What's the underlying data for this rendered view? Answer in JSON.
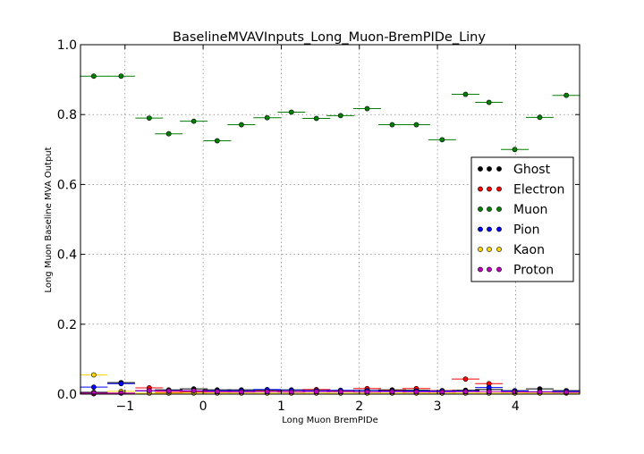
{
  "chart_data": {
    "type": "scatter",
    "title": "BaselineMVAVInputs_Long_Muon-BremPIDe_Liny",
    "xlabel": "Long Muon BremPIDe",
    "ylabel": "Long Muon Baseline MVA Output",
    "xlim": [
      -1.57,
      4.82
    ],
    "ylim": [
      0.0,
      1.0
    ],
    "x_ticks": [
      "−1",
      "0",
      "1",
      "2",
      "3",
      "4"
    ],
    "x_tick_values": [
      -1,
      0,
      1,
      2,
      3,
      4
    ],
    "y_ticks": [
      "0.0",
      "0.2",
      "0.4",
      "0.6",
      "0.8",
      "1.0"
    ],
    "y_tick_values": [
      0.0,
      0.2,
      0.4,
      0.6,
      0.8,
      1.0
    ],
    "grid": true,
    "legend_position": "center-right",
    "bin_width": 0.355,
    "x": [
      -1.4,
      -1.05,
      -0.69,
      -0.44,
      -0.12,
      0.18,
      0.49,
      0.82,
      1.13,
      1.45,
      1.76,
      2.1,
      2.42,
      2.73,
      3.06,
      3.36,
      3.66,
      3.99,
      4.31,
      4.65
    ],
    "series": [
      {
        "name": "Ghost",
        "color": "#000000",
        "values": [
          0.005,
          0.033,
          0.01,
          0.012,
          0.015,
          0.012,
          0.012,
          0.011,
          0.012,
          0.011,
          0.01,
          0.011,
          0.012,
          0.011,
          0.01,
          0.011,
          0.013,
          0.01,
          0.015,
          0.01
        ]
      },
      {
        "name": "Electron",
        "color": "#ff0000",
        "values": [
          0.001,
          0.003,
          0.018,
          0.005,
          0.006,
          0.006,
          0.007,
          0.008,
          0.01,
          0.013,
          0.008,
          0.016,
          0.01,
          0.016,
          0.01,
          0.043,
          0.03,
          0.006,
          0.006,
          0.005
        ]
      },
      {
        "name": "Muon",
        "color": "#008000",
        "values": [
          0.91,
          0.91,
          0.79,
          0.745,
          0.781,
          0.725,
          0.771,
          0.791,
          0.807,
          0.789,
          0.797,
          0.817,
          0.771,
          0.771,
          0.728,
          0.858,
          0.835,
          0.7,
          0.792,
          0.855
        ]
      },
      {
        "name": "Pion",
        "color": "#0000ff",
        "values": [
          0.02,
          0.03,
          0.009,
          0.01,
          0.009,
          0.01,
          0.01,
          0.013,
          0.011,
          0.01,
          0.011,
          0.01,
          0.009,
          0.009,
          0.009,
          0.009,
          0.019,
          0.009,
          0.007,
          0.008
        ]
      },
      {
        "name": "Kaon",
        "color": "#ffd700",
        "values": [
          0.055,
          0.008,
          0.003,
          0.003,
          0.003,
          0.003,
          0.003,
          0.003,
          0.003,
          0.003,
          0.003,
          0.003,
          0.003,
          0.003,
          0.003,
          0.003,
          0.003,
          0.003,
          0.003,
          0.003
        ]
      },
      {
        "name": "Proton",
        "color": "#bf00bf",
        "values": [
          0.003,
          0.003,
          0.01,
          0.009,
          0.01,
          0.007,
          0.006,
          0.007,
          0.006,
          0.007,
          0.007,
          0.006,
          0.007,
          0.006,
          0.006,
          0.007,
          0.007,
          0.006,
          0.006,
          0.005
        ]
      }
    ]
  }
}
